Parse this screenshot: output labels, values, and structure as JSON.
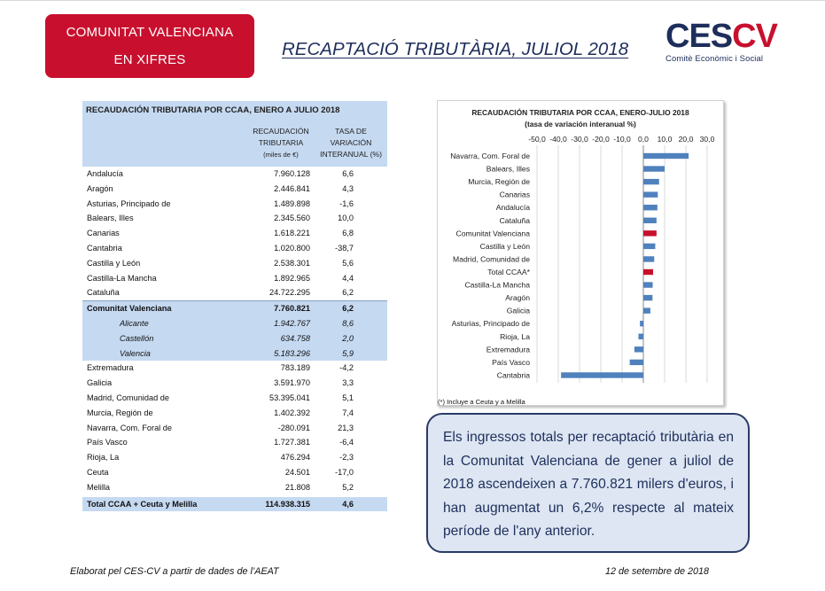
{
  "header": {
    "badge_line1": "COMUNITAT VALENCIANA",
    "badge_line2": "EN XIFRES",
    "title": "RECAPTACIÓ TRIBUTÀRIA, JULIOL 2018",
    "logo_ces": "CES",
    "logo_cv": "CV",
    "logo_sub": "Comitè Econòmic i Social"
  },
  "table": {
    "title": "RECAUDACIÓN TRIBUTARIA POR CCAA, ENERO A JULIO 2018",
    "col1": [
      "RECAUDACIÓN",
      "TRIBUTARIA",
      "(miles de €)"
    ],
    "col2": [
      "TASA DE",
      "VARIACIÓN",
      "INTERANUAL (%)"
    ],
    "rows": [
      {
        "name": "Andalucía",
        "value": "7.960.128",
        "pct": "6,6"
      },
      {
        "name": "Aragón",
        "value": "2.446.841",
        "pct": "4,3"
      },
      {
        "name": "Asturias, Principado de",
        "value": "1.489.898",
        "pct": "-1,6"
      },
      {
        "name": "Balears, Illes",
        "value": "2.345.560",
        "pct": "10,0"
      },
      {
        "name": "Canarias",
        "value": "1.618.221",
        "pct": "6,8"
      },
      {
        "name": "Cantabria",
        "value": "1.020.800",
        "pct": "-38,7"
      },
      {
        "name": "Castilla y León",
        "value": "2.538.301",
        "pct": "5,6"
      },
      {
        "name": "Castilla-La Mancha",
        "value": "1.892.965",
        "pct": "4,4"
      },
      {
        "name": "Cataluña",
        "value": "24.722.295",
        "pct": "6,2"
      }
    ],
    "cv": {
      "name": "Comunitat Valenciana",
      "value": "7.760.821",
      "pct": "6,2"
    },
    "cv_sub": [
      {
        "name": "Alicante",
        "value": "1.942.767",
        "pct": "8,6"
      },
      {
        "name": "Castellón",
        "value": "634.758",
        "pct": "2,0"
      },
      {
        "name": "Valencia",
        "value": "5.183.296",
        "pct": "5,9"
      }
    ],
    "rows2": [
      {
        "name": "Extremadura",
        "value": "783.189",
        "pct": "-4,2"
      },
      {
        "name": "Galicia",
        "value": "3.591.970",
        "pct": "3,3"
      },
      {
        "name": "Madrid, Comunidad de",
        "value": "53.395.041",
        "pct": "5,1"
      },
      {
        "name": "Murcia, Región de",
        "value": "1.402.392",
        "pct": "7,4"
      },
      {
        "name": "Navarra, Com. Foral de",
        "value": "-280.091",
        "pct": "21,3"
      },
      {
        "name": "País Vasco",
        "value": "1.727.381",
        "pct": "-6,4"
      },
      {
        "name": "Rioja, La",
        "value": "476.294",
        "pct": "-2,3"
      },
      {
        "name": "Ceuta",
        "value": "24.501",
        "pct": "-17,0"
      },
      {
        "name": "Melilla",
        "value": "21.808",
        "pct": "5,2"
      }
    ],
    "total": {
      "name": "Total CCAA + Ceuta y Melilla",
      "value": "114.938.315",
      "pct": "4,6"
    }
  },
  "chart_data": {
    "type": "bar",
    "orientation": "horizontal",
    "title": "RECAUDACIÓN TRIBUTARIA POR CCAA, ENERO-JULIO 2018",
    "subtitle": "(tasa de variación interanual %)",
    "xlim": [
      -50,
      30
    ],
    "ticks": [
      "-50,0",
      "-40,0",
      "-30,0",
      "-20,0",
      "-10,0",
      "0,0",
      "10,0",
      "20,0",
      "30,0"
    ],
    "tick_values": [
      -50,
      -40,
      -30,
      -20,
      -10,
      0,
      10,
      20,
      30
    ],
    "grid": true,
    "axis_position": "top",
    "categories": [
      "Navarra, Com. Foral de",
      "Balears, Illes",
      "Murcia, Región de",
      "Canarias",
      "Andalucía",
      "Cataluña",
      "Comunitat Valenciana",
      "Castilla y León",
      "Madrid, Comunidad de",
      "Total CCAA*",
      "Castilla-La Mancha",
      "Aragón",
      "Galicia",
      "Asturias, Principado de",
      "Rioja, La",
      "Extremadura",
      "País Vasco",
      "Cantabria"
    ],
    "values": [
      21.3,
      10.0,
      7.4,
      6.8,
      6.6,
      6.2,
      6.2,
      5.6,
      5.1,
      4.6,
      4.4,
      4.3,
      3.3,
      -1.6,
      -2.3,
      -4.2,
      -6.4,
      -38.7
    ],
    "highlight": [
      "Comunitat Valenciana",
      "Total CCAA*"
    ],
    "bar_color": "#4f81bd",
    "highlight_color": "#c8102e",
    "footnote": "(*) Incluye a Ceuta y a Melilla"
  },
  "info_text": "Els ingressos totals per recaptació tributària en la Comunitat Valenciana de gener a juliol de 2018 ascendeixen a 7.760.821 milers d'euros, i han augmentat un 6,2% respecte al mateix període de l'any anterior.",
  "footer": {
    "left": "Elaborat pel CES-CV a partir de dades de l’AEAT",
    "right": "12 de setembre  de 2018"
  },
  "colors": {
    "accent": "#c8102e",
    "navy": "#1e2e5c",
    "table_fill": "#c5d9f1",
    "box_fill": "#dde6f2"
  }
}
